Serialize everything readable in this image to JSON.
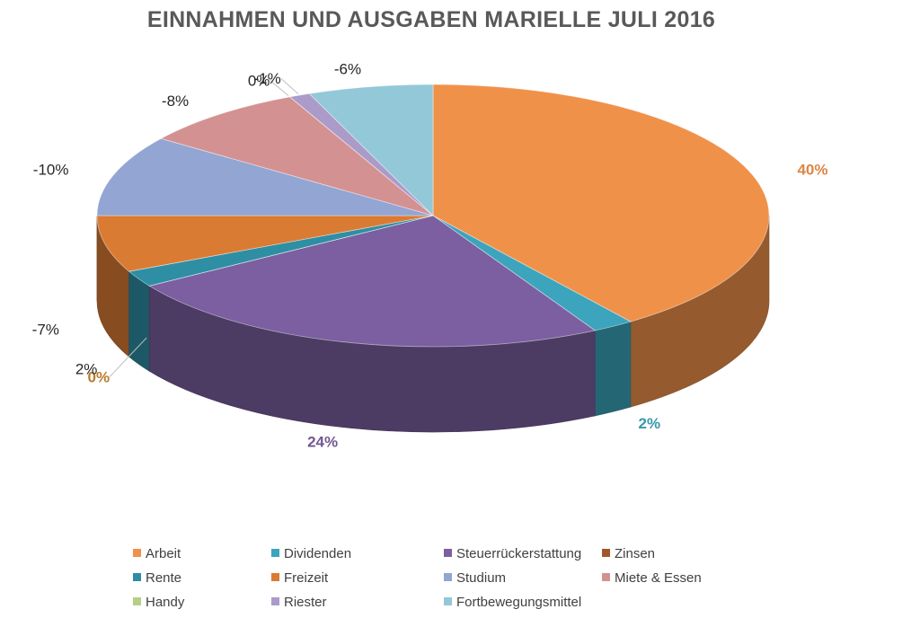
{
  "chart_data": {
    "type": "pie",
    "title": "EINNAHMEN UND AUSGABEN MARIELLE JULI 2016",
    "style": "3d-pie",
    "legend_position": "bottom",
    "slices": [
      {
        "name": "Arbeit",
        "value": 40,
        "label": "40%",
        "color": "#F0914A"
      },
      {
        "name": "Dividenden",
        "value": 2,
        "label": "2%",
        "color": "#3CA4BC"
      },
      {
        "name": "Steuerrückerstattung",
        "value": 24,
        "label": "24%",
        "color": "#7B5FA0"
      },
      {
        "name": "Zinsen",
        "value": 0,
        "label": "0%",
        "color": "#A0562A"
      },
      {
        "name": "Rente",
        "value": 2,
        "label": "2%",
        "color": "#2E8EA4"
      },
      {
        "name": "Freizeit",
        "value": -7,
        "label": "-7%",
        "color": "#DA7B34"
      },
      {
        "name": "Studium",
        "value": -10,
        "label": "-10%",
        "color": "#93A5D2"
      },
      {
        "name": "Miete & Essen",
        "value": -8,
        "label": "-8%",
        "color": "#D49191"
      },
      {
        "name": "Handy",
        "value": 0,
        "label": "0%",
        "color": "#B6CF85"
      },
      {
        "name": "Riester",
        "value": -1,
        "label": "-1%",
        "color": "#AA9BC9"
      },
      {
        "name": "Fortbewegungsmittel",
        "value": -6,
        "label": "-6%",
        "color": "#93C8D8"
      }
    ]
  }
}
